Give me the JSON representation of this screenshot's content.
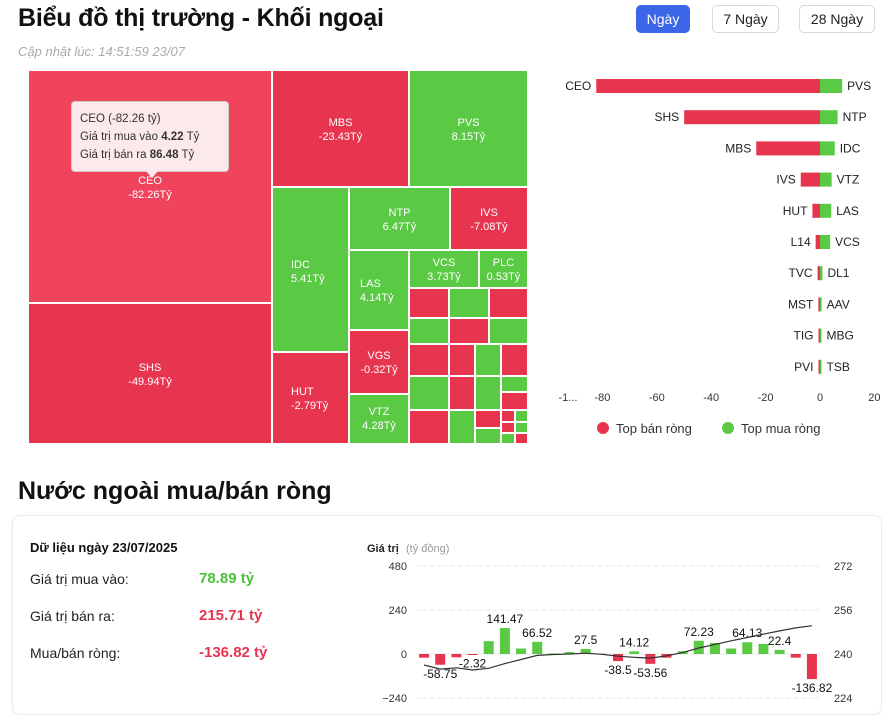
{
  "header": {
    "title": "Biểu đồ thị trường - Khối ngoại",
    "updated": "Cập nhật lúc: 14:51:59 23/07",
    "ranges": [
      "Ngày",
      "7 Ngày",
      "28 Ngày"
    ],
    "active_range": "Ngày"
  },
  "colors": {
    "sell": "#e8354f",
    "buy": "#5ac944",
    "accent": "#3b66e8"
  },
  "treemap": {
    "cells": [
      {
        "ticker": "CEO",
        "value": "-82.26Tỷ",
        "side": "sell"
      },
      {
        "ticker": "SHS",
        "value": "-49.94Tỷ",
        "side": "sell"
      },
      {
        "ticker": "MBS",
        "value": "-23.43Tỷ",
        "side": "sell"
      },
      {
        "ticker": "PVS",
        "value": "8.15Tỷ",
        "side": "buy"
      },
      {
        "ticker": "IDC",
        "value": "5.41Tỷ",
        "side": "buy"
      },
      {
        "ticker": "NTP",
        "value": "6.47Tỷ",
        "side": "buy"
      },
      {
        "ticker": "IVS",
        "value": "-7.08Tỷ",
        "side": "sell"
      },
      {
        "ticker": "LAS",
        "value": "4.14Tỷ",
        "side": "buy"
      },
      {
        "ticker": "VCS",
        "value": "3.73Tỷ",
        "side": "buy"
      },
      {
        "ticker": "PLC",
        "value": "0.53Tỷ",
        "side": "buy"
      },
      {
        "ticker": "HUT",
        "value": "-2.79Tỷ",
        "side": "sell"
      },
      {
        "ticker": "VGS",
        "value": "-0.32Tỷ",
        "side": "sell"
      },
      {
        "ticker": "VTZ",
        "value": "4.28Tỷ",
        "side": "buy"
      }
    ],
    "tooltip": {
      "title": "CEO (-82.26 tỷ)",
      "buy_label": "Giá trị mua vào",
      "buy_value": "4.22",
      "buy_unit": "Tỷ",
      "sell_label": "Giá trị bán ra",
      "sell_value": "86.48",
      "sell_unit": "Tỷ"
    }
  },
  "chart_data": [
    {
      "type": "bar",
      "sell_tickers": [
        "CEO",
        "SHS",
        "MBS",
        "IVS",
        "HUT",
        "L14",
        "TVC",
        "MST",
        "TIG",
        "PVI"
      ],
      "sell_values": [
        -82.26,
        -49.94,
        -23.43,
        -7.08,
        -2.79,
        -1.6,
        -0.9,
        -0.6,
        -0.45,
        -0.3
      ],
      "buy_tickers": [
        "PVS",
        "NTP",
        "IDC",
        "VTZ",
        "LAS",
        "VCS",
        "DL1",
        "AAV",
        "MBG",
        "TSB"
      ],
      "buy_values": [
        8.15,
        6.47,
        5.41,
        4.28,
        4.14,
        3.73,
        0.9,
        0.6,
        0.5,
        0.4
      ],
      "x_ticks": [
        "-1...",
        "-80",
        "-60",
        "-40",
        "-20",
        "0",
        "20"
      ],
      "xlim": [
        -100,
        20
      ],
      "legend": [
        "Top bán ròng",
        "Top mua ròng"
      ],
      "legend_position": "bottom"
    },
    {
      "type": "bar",
      "ylabel": "Giá trị",
      "ylabel_unit": "(tỷ đồng)",
      "y_left_ticks": [
        "480",
        "240",
        "0",
        "−240"
      ],
      "y_right_ticks": [
        "272",
        "256",
        "240",
        "224"
      ],
      "ylim_left": [
        -240,
        480
      ],
      "ylim_right": [
        224,
        272
      ],
      "values": [
        -20,
        -58.75,
        -18,
        -2.32,
        70,
        141.47,
        30,
        66.52,
        3,
        10,
        27.5,
        2,
        -38.5,
        14.12,
        -53.56,
        -20,
        15,
        72.23,
        60,
        30,
        64.13,
        55,
        22.4,
        -20,
        -136.82
      ],
      "labels": [
        "",
        "-58.75",
        "",
        "-2.32",
        "",
        "141.47",
        "",
        "66.52",
        "",
        "",
        "27.5",
        "",
        "-38.5",
        "14.12",
        "-53.56",
        "",
        "",
        "72.23",
        "",
        "",
        "64.13",
        "",
        "22.4",
        "",
        "-136.82"
      ],
      "line_values": [
        236,
        234.5,
        235,
        234.2,
        234.8,
        236.5,
        238,
        239.5,
        239.8,
        240,
        240.3,
        239.9,
        239.2,
        238.8,
        238.5,
        239.3,
        240.5,
        242.2,
        243.5,
        244.8,
        246,
        247.2,
        248.4,
        249.5,
        250.3
      ]
    }
  ],
  "flow": {
    "title": "Nước ngoài mua/bán ròng",
    "date_label": "Dữ liệu ngày 23/07/2025",
    "buy_label": "Giá trị mua vào:",
    "buy_value": "78.89 tỷ",
    "sell_label": "Giá trị bán ra:",
    "sell_value": "215.71 tỷ",
    "net_label": "Mua/bán ròng:",
    "net_value": "-136.82 tỷ"
  }
}
